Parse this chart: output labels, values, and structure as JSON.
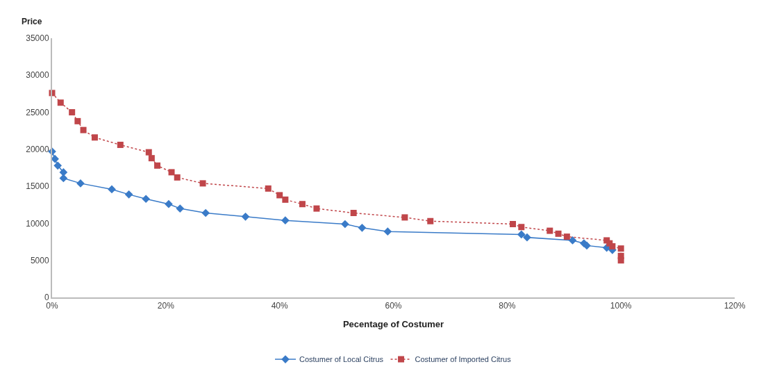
{
  "chart_data": {
    "type": "line",
    "xlabel": "Pecentage of Costumer",
    "ylabel": "Price",
    "xlim": [
      0,
      120
    ],
    "xticks": [
      {
        "value": 0,
        "label": "0%"
      },
      {
        "value": 20,
        "label": "20%"
      },
      {
        "value": 40,
        "label": "40%"
      },
      {
        "value": 60,
        "label": "60%"
      },
      {
        "value": 80,
        "label": "80%"
      },
      {
        "value": 100,
        "label": "100%"
      },
      {
        "value": 120,
        "label": "120%"
      }
    ],
    "ylim": [
      0,
      35000
    ],
    "yticks": [
      0,
      5000,
      10000,
      15000,
      20000,
      25000,
      30000,
      35000
    ],
    "legend": "bottom",
    "series": [
      {
        "name": "Costumer of Local Citrus",
        "color": "#3a7bc8",
        "marker": "diamond",
        "line_style": "solid",
        "x": [
          0,
          0.5,
          1,
          2,
          2,
          5,
          10.5,
          13.5,
          16.5,
          20.5,
          22.5,
          27,
          34,
          41,
          51.5,
          54.5,
          59,
          82.5,
          83.5,
          91.5,
          93.5,
          94,
          97.5,
          98.5
        ],
        "values": [
          19700,
          18700,
          17800,
          16900,
          16100,
          15400,
          14600,
          13900,
          13300,
          12600,
          12000,
          11400,
          10900,
          10400,
          9900,
          9400,
          8900,
          8500,
          8100,
          7700,
          7300,
          7000,
          6700,
          6400
        ]
      },
      {
        "name": "Costumer of Imported Citrus",
        "color": "#c0464a",
        "marker": "square",
        "line_style": "dotted",
        "x": [
          0,
          1.5,
          3.5,
          4.5,
          5.5,
          7.5,
          12,
          17,
          17.5,
          18.5,
          21,
          22,
          26.5,
          38,
          40,
          41,
          44,
          46.5,
          53,
          62,
          66.5,
          81,
          82.5,
          87.5,
          89,
          90.5,
          97.5,
          98,
          98.5,
          100,
          100,
          100
        ],
        "values": [
          27600,
          26300,
          25000,
          23800,
          22600,
          21600,
          20600,
          19600,
          18800,
          17800,
          16900,
          16200,
          15400,
          14700,
          13800,
          13200,
          12600,
          12000,
          11400,
          10800,
          10300,
          9900,
          9500,
          9000,
          8600,
          8200,
          7700,
          7300,
          6900,
          6600,
          5600,
          5000
        ]
      }
    ]
  }
}
